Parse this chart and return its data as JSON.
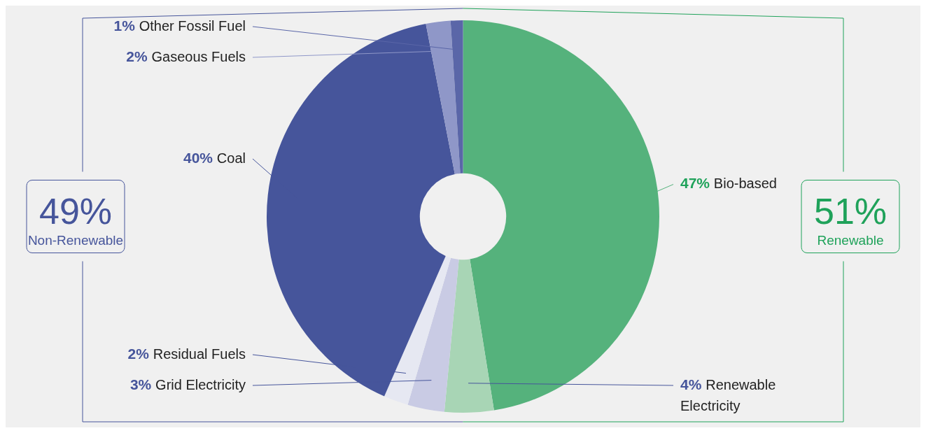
{
  "chart_data": {
    "type": "donut",
    "categories": [
      "Bio-based",
      "Renewable Electricity",
      "Grid Electricity",
      "Residual Fuels",
      "Coal",
      "Gaseous Fuels",
      "Other Fossil Fuel"
    ],
    "values": [
      47,
      4,
      3,
      2,
      40,
      2,
      1
    ],
    "colors": [
      "#55b27c",
      "#a8d5b5",
      "#c9cbe4",
      "#e6e8f2",
      "#46559b",
      "#8f97c8",
      "#5a66a8"
    ],
    "value_labels": [
      "47%",
      "4%",
      "3%",
      "2%",
      "40%",
      "2%",
      "1%"
    ],
    "annotations": [
      "49%",
      "Non-Renewable",
      "51%",
      "Renewable"
    ]
  }
}
